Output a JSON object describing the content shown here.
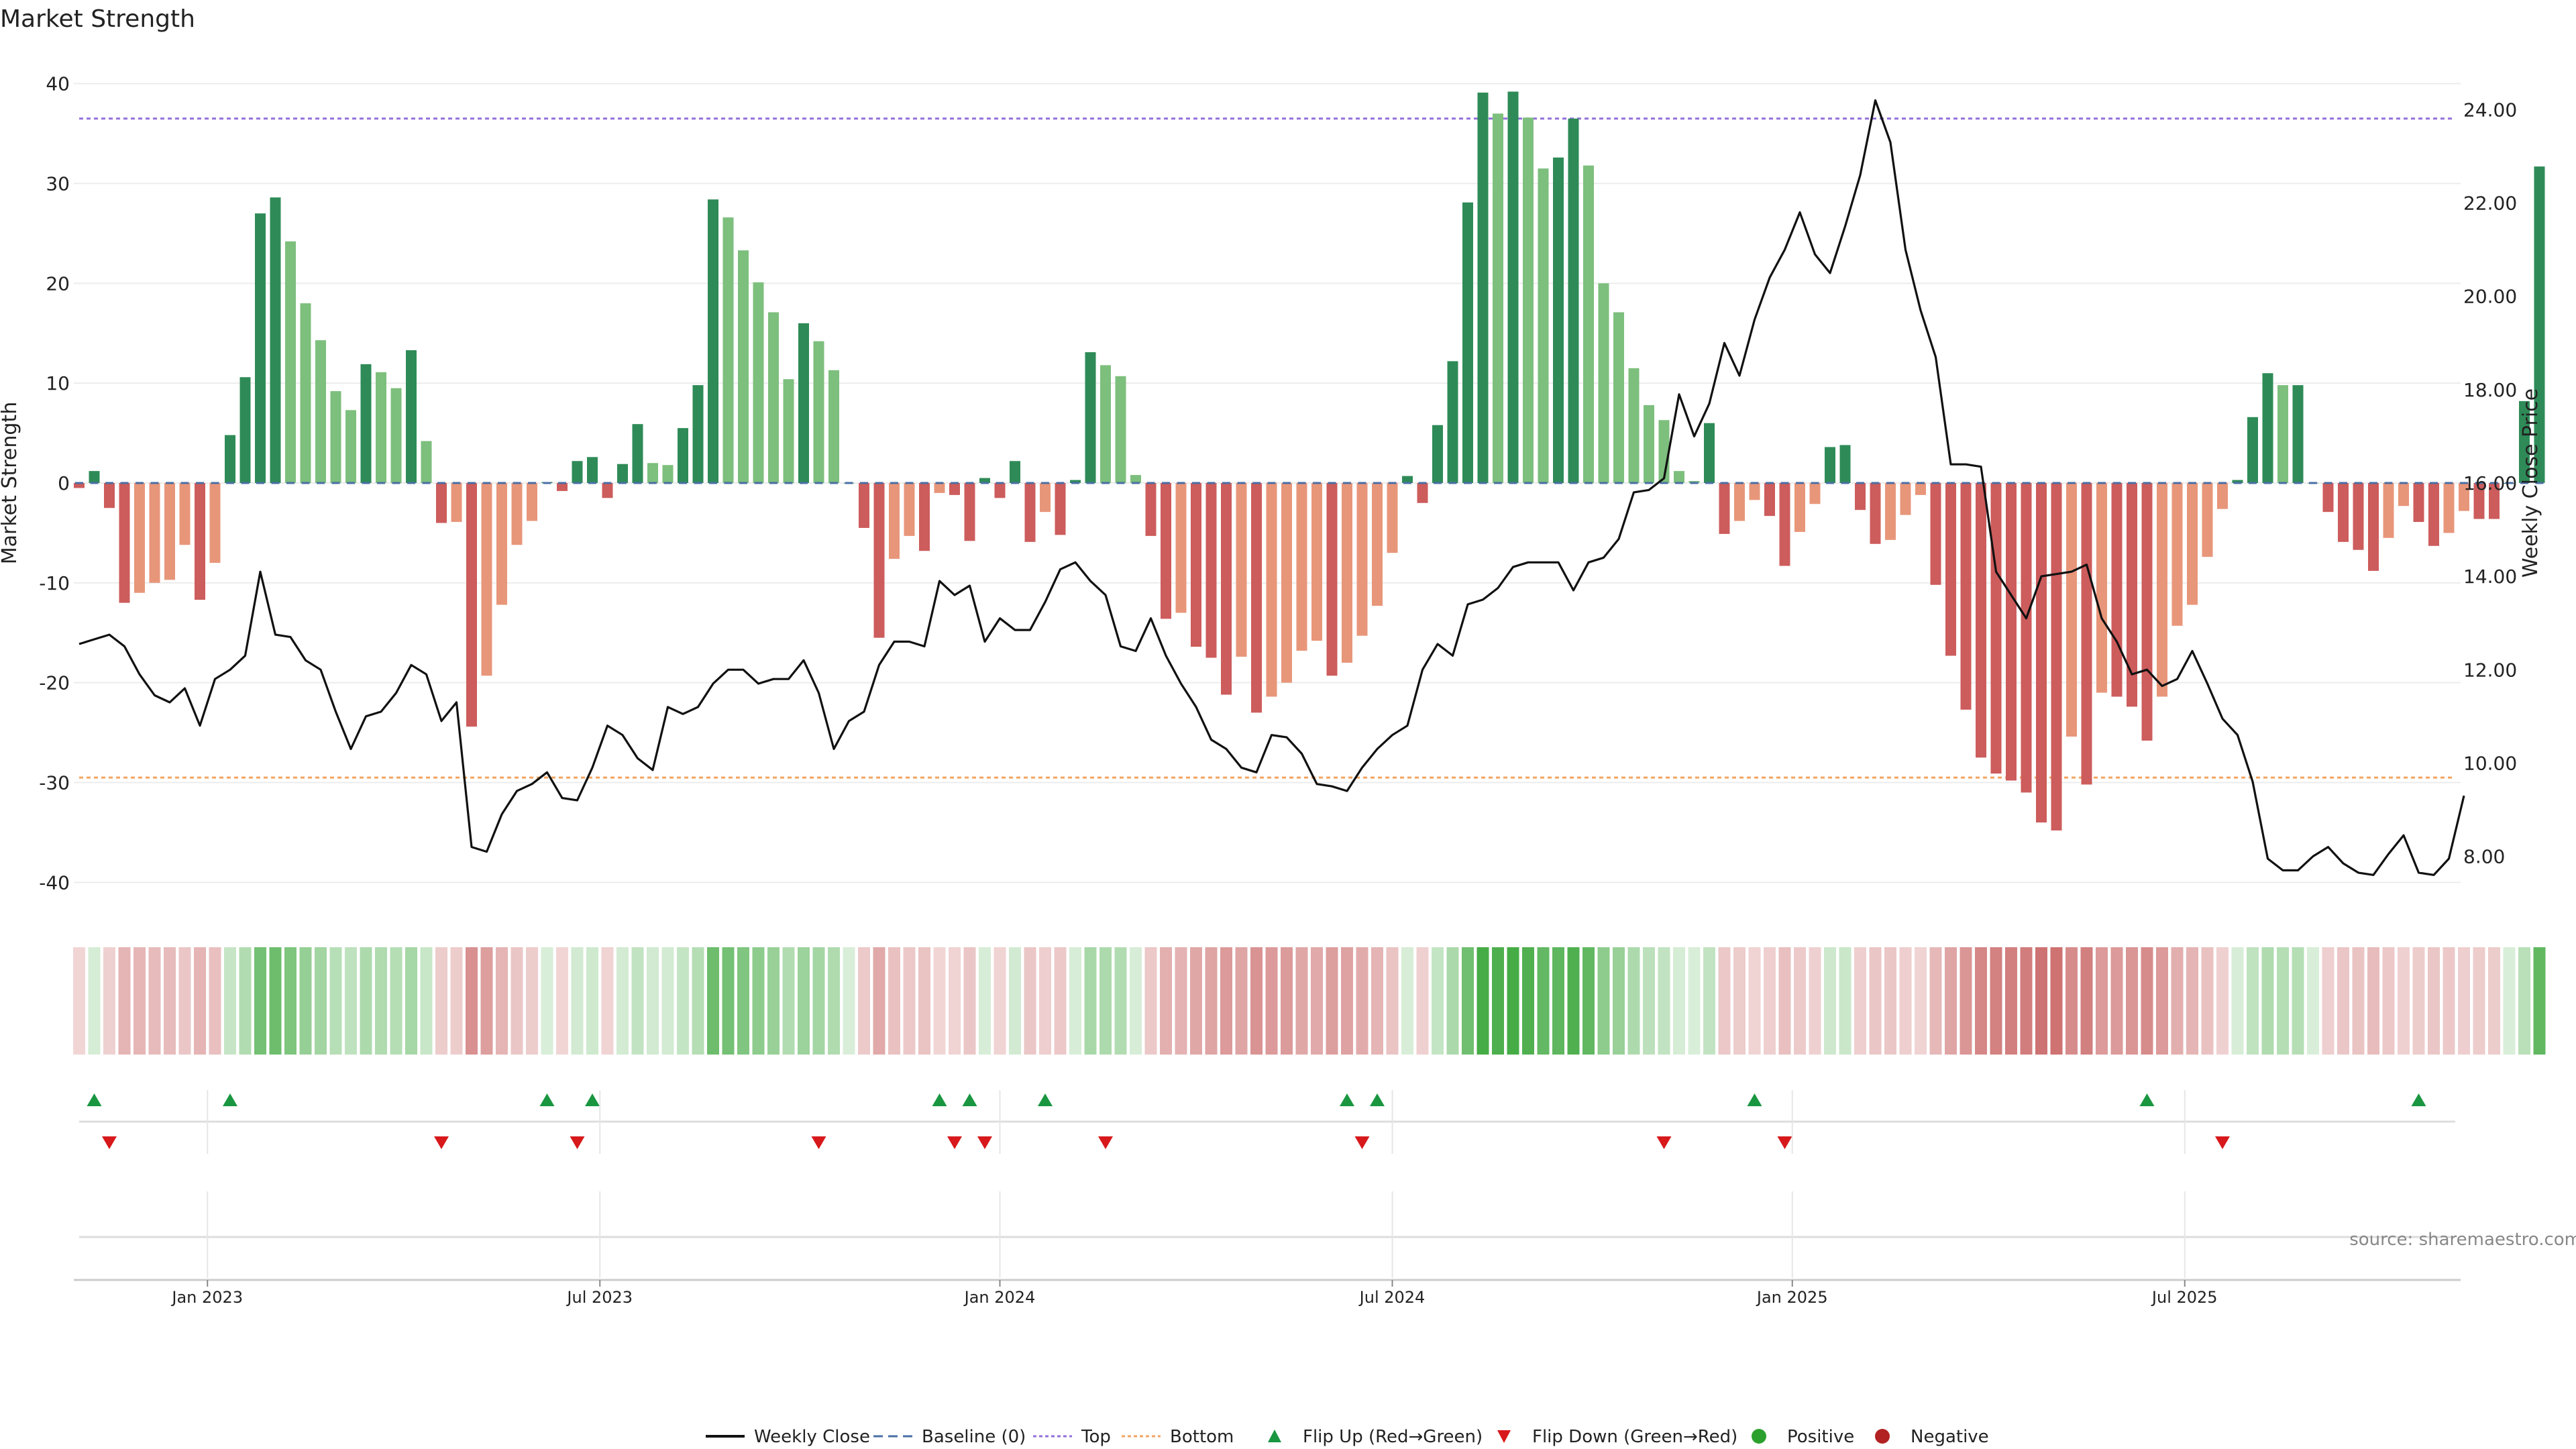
{
  "chart_data": {
    "type": "bar",
    "title": "Market Strength",
    "ylabel_left": "Market Strength",
    "ylabel_right": "Weekly Close Price",
    "left_axis": {
      "range": [
        -43,
        43
      ],
      "ticks": [
        40,
        30,
        20,
        10,
        0,
        -10,
        -20,
        -30,
        -40
      ]
    },
    "right_axis": {
      "range": [
        6.8,
        25.2
      ],
      "ticks": [
        "24.00",
        "22.00",
        "20.00",
        "18.00",
        "16.00",
        "14.00",
        "12.00",
        "10.00",
        "8.00"
      ]
    },
    "x_ticks": [
      {
        "label": "Jan 2023",
        "week": 8.5
      },
      {
        "label": "Jul 2023",
        "week": 34.5
      },
      {
        "label": "Jan 2024",
        "week": 61
      },
      {
        "label": "Jul 2024",
        "week": 87
      },
      {
        "label": "Jan 2025",
        "week": 113.5
      },
      {
        "label": "Jul 2025",
        "week": 139.5
      }
    ],
    "top_level": 36.5,
    "bottom_level": -29.5,
    "baseline": 0,
    "strength": [
      -0.5,
      1.2,
      -2.5,
      -12,
      -11,
      -10,
      -9.7,
      -6.2,
      -11.7,
      -8,
      4.8,
      10.6,
      27,
      28.6,
      24.2,
      18,
      14.3,
      9.2,
      7.3,
      11.9,
      11.1,
      9.5,
      13.3,
      4.2,
      -4,
      -3.9,
      -24.4,
      -19.3,
      -12.2,
      -6.2,
      -3.8,
      0.1,
      -0.8,
      2.2,
      2.6,
      -1.5,
      1.9,
      5.9,
      2,
      1.8,
      5.5,
      9.8,
      28.4,
      26.6,
      23.3,
      20.1,
      17.1,
      10.4,
      16,
      14.2,
      11.3,
      0,
      -4.5,
      -15.5,
      -7.6,
      -5.3,
      -6.8,
      -1,
      -1.2,
      -5.8,
      0.5,
      -1.5,
      2.2,
      -5.9,
      -2.9,
      -5.2,
      0.3,
      13.1,
      11.8,
      10.7,
      0.8,
      -5.3,
      -13.6,
      -13,
      -16.4,
      -17.5,
      -21.2,
      -17.4,
      -23,
      -21.4,
      -20,
      -16.8,
      -15.8,
      -19.3,
      -18,
      -15.3,
      -12.3,
      -7,
      0.7,
      -2,
      5.8,
      12.2,
      28.1,
      39.1,
      37,
      39.2,
      36.6,
      31.5,
      32.6,
      36.5,
      31.8,
      20,
      17.1,
      11.5,
      7.8,
      6.3,
      1.2,
      0.2,
      6,
      -5.1,
      -3.8,
      -1.7,
      -3.3,
      -8.3,
      -4.9,
      -2.1,
      3.6,
      3.8,
      -2.7,
      -6.1,
      -5.7,
      -3.2,
      -1.2,
      -10.2,
      -17.3,
      -22.7,
      -27.5,
      -29.1,
      -29.8,
      -31,
      -34,
      -34.8,
      -25.4,
      -30.2,
      -21,
      -21.4,
      -22.4,
      -25.8,
      -21.4,
      -14.3,
      -12.2,
      -7.4,
      -2.6,
      0.3,
      6.6,
      11,
      9.8,
      9.8,
      0,
      -2.9,
      -5.9,
      -6.7,
      -8.8,
      -5.5,
      -2.3,
      -3.9,
      -6.3,
      -5,
      -2.8,
      -3.6,
      -3.6,
      0,
      8.2,
      31.7
    ],
    "weekly_close": [
      12.55,
      12.65,
      12.75,
      12.5,
      11.9,
      11.45,
      11.3,
      11.6,
      10.8,
      11.8,
      12,
      12.3,
      14.1,
      12.75,
      12.7,
      12.2,
      12,
      11.1,
      10.3,
      11,
      11.1,
      11.5,
      12.1,
      11.9,
      10.9,
      11.3,
      8.2,
      8.1,
      8.9,
      9.4,
      9.55,
      9.8,
      9.25,
      9.2,
      9.9,
      10.8,
      10.6,
      10.1,
      9.85,
      11.2,
      11.05,
      11.2,
      11.7,
      12,
      12,
      11.7,
      11.8,
      11.8,
      12.2,
      11.5,
      10.3,
      10.9,
      11.1,
      12.1,
      12.6,
      12.6,
      12.5,
      13.9,
      13.6,
      13.8,
      12.6,
      13.1,
      12.85,
      12.85,
      13.45,
      14.15,
      14.3,
      13.9,
      13.6,
      12.5,
      12.4,
      13.1,
      12.3,
      11.7,
      11.2,
      10.5,
      10.3,
      9.9,
      9.8,
      10.6,
      10.55,
      10.2,
      9.55,
      9.5,
      9.4,
      9.9,
      10.3,
      10.6,
      10.8,
      12,
      12.55,
      12.3,
      13.4,
      13.5,
      13.75,
      14.2,
      14.3,
      14.3,
      14.3,
      13.7,
      14.3,
      14.4,
      14.8,
      15.8,
      15.85,
      16.1,
      17.9,
      17,
      17.7,
      19,
      18.3,
      19.5,
      20.4,
      21,
      21.8,
      20.9,
      20.5,
      21.5,
      22.6,
      24.2,
      23.3,
      21,
      19.7,
      18.7,
      16.4,
      16.4,
      16.35,
      14.1,
      13.6,
      13.1,
      14,
      14.05,
      14.1,
      14.25,
      13.1,
      12.6,
      11.9,
      12,
      11.65,
      11.8,
      12.4,
      11.7,
      10.95,
      10.6,
      9.6,
      7.95,
      7.7,
      7.7,
      8,
      8.2,
      7.85,
      7.65,
      7.6,
      8.05,
      8.45,
      7.65,
      7.6,
      7.95,
      9.3
    ],
    "flip_up_weeks": [
      1,
      10,
      31,
      34,
      57,
      59,
      64,
      84,
      86,
      111,
      137,
      155
    ],
    "flip_down_weeks": [
      2,
      24,
      33,
      49,
      58,
      60,
      68,
      85,
      105,
      113,
      142
    ],
    "annotation": "source: sharemaestro.com",
    "legend": [
      "Weekly Close",
      "Baseline (0)",
      "Top",
      "Bottom",
      "Flip Up (Red→Green)",
      "Flip Down (Green→Red)",
      "Positive",
      "Negative"
    ],
    "colors": {
      "pos_strong": "#2e8b57",
      "pos_light": "#7dbf7d",
      "neg_strong": "#cd5c5c",
      "neg_light": "#e8967a",
      "line": "#111111",
      "top": "#9370db",
      "bottom": "#f4a460",
      "flip_up": "#1a9641",
      "flip_down": "#d7191c",
      "positive": "#2ca02c",
      "negative": "#b22222",
      "baseline": "#4a6fa5"
    }
  }
}
